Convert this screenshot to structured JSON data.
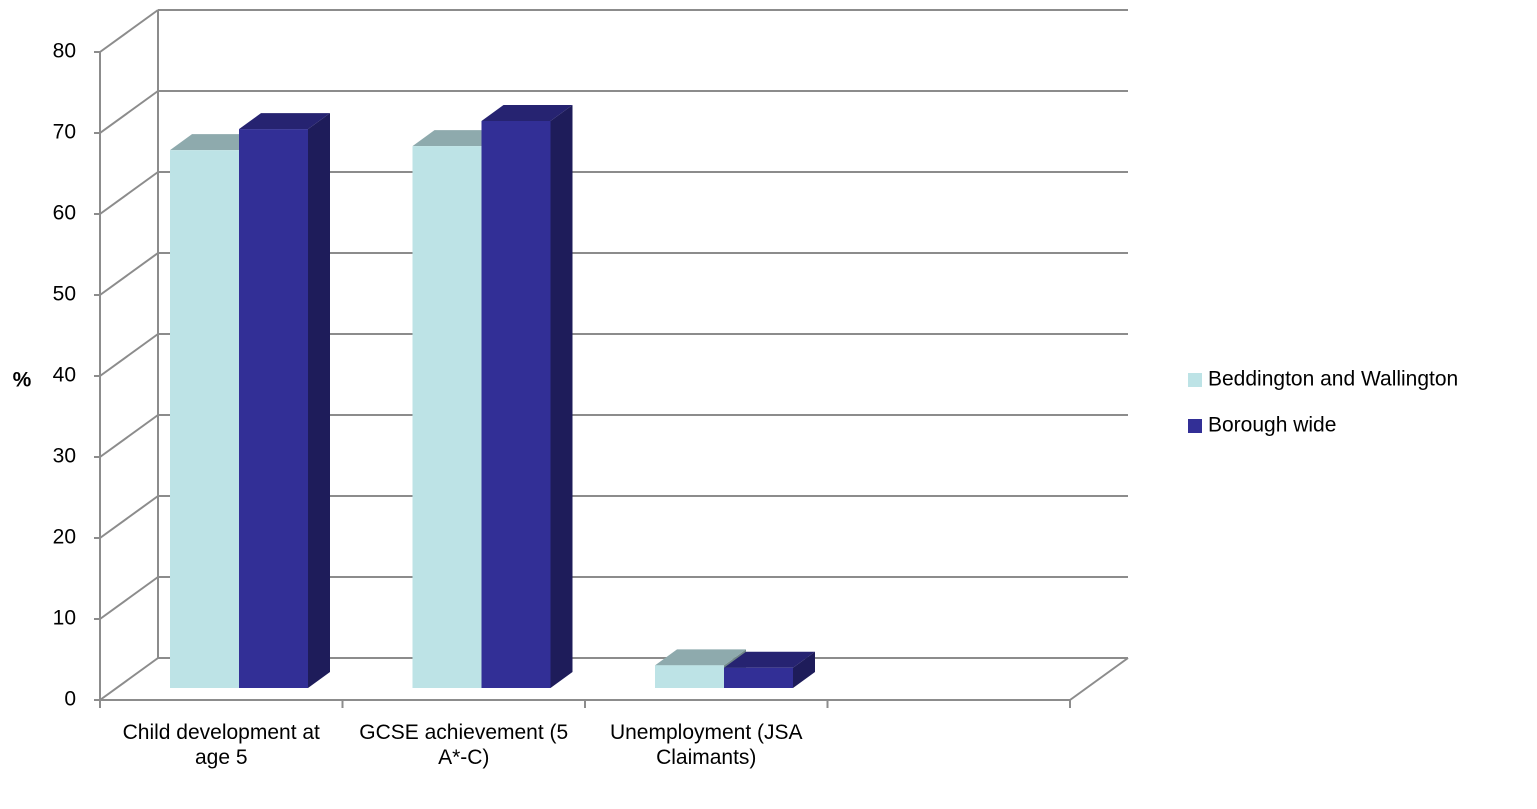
{
  "chart_data": {
    "type": "bar3d",
    "y_label": "%",
    "categories": [
      "Child development at age 5",
      "GCSE achievement (5 A*-C)",
      "Unemployment (JSA Claimants)",
      null
    ],
    "series": [
      {
        "name": "Beddington and Wallington",
        "color": "#bde3e6",
        "values": [
          66.4,
          66.9,
          2.8,
          null
        ]
      },
      {
        "name": "Borough wide",
        "color": "#322f96",
        "values": [
          69,
          70,
          2.5,
          null
        ]
      }
    ],
    "ylim": [
      0,
      80
    ],
    "yticks": [
      0,
      10,
      20,
      30,
      40,
      50,
      60,
      70,
      80
    ],
    "grid": true,
    "legend": "right"
  }
}
